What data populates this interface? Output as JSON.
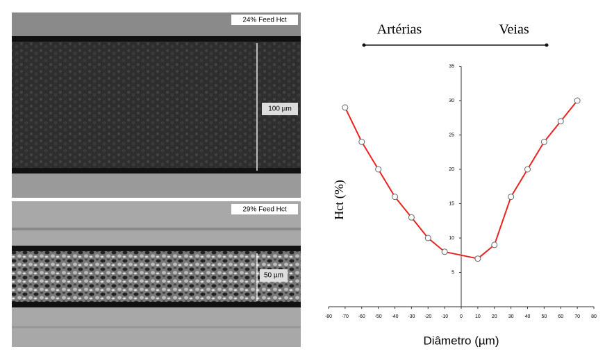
{
  "images": [
    {
      "label": "24% Feed Hct",
      "scale": "100 µm"
    },
    {
      "label": "29% Feed Hct",
      "scale": "50 µm"
    }
  ],
  "chart_data": {
    "type": "line",
    "annotations": [
      "Artérias",
      "Veias"
    ],
    "y_label": "Hct (%)",
    "x_label": "Diâmetro (µm)",
    "x": [
      -70,
      -60,
      -50,
      -40,
      -30,
      -20,
      -10,
      10,
      20,
      30,
      40,
      50,
      60,
      70
    ],
    "values": [
      29,
      24,
      20,
      16,
      13,
      10,
      8,
      7,
      9,
      16,
      20,
      24,
      27,
      30
    ],
    "color": "#e8231e",
    "xlim": [
      -80,
      80
    ],
    "xticks": [
      -80,
      -70,
      -60,
      -50,
      -40,
      -30,
      -20,
      -10,
      0,
      10,
      20,
      30,
      40,
      50,
      60,
      70,
      80
    ],
    "ylim": [
      0,
      35
    ],
    "yticks": [
      5,
      10,
      15,
      20,
      25,
      30,
      35
    ]
  }
}
